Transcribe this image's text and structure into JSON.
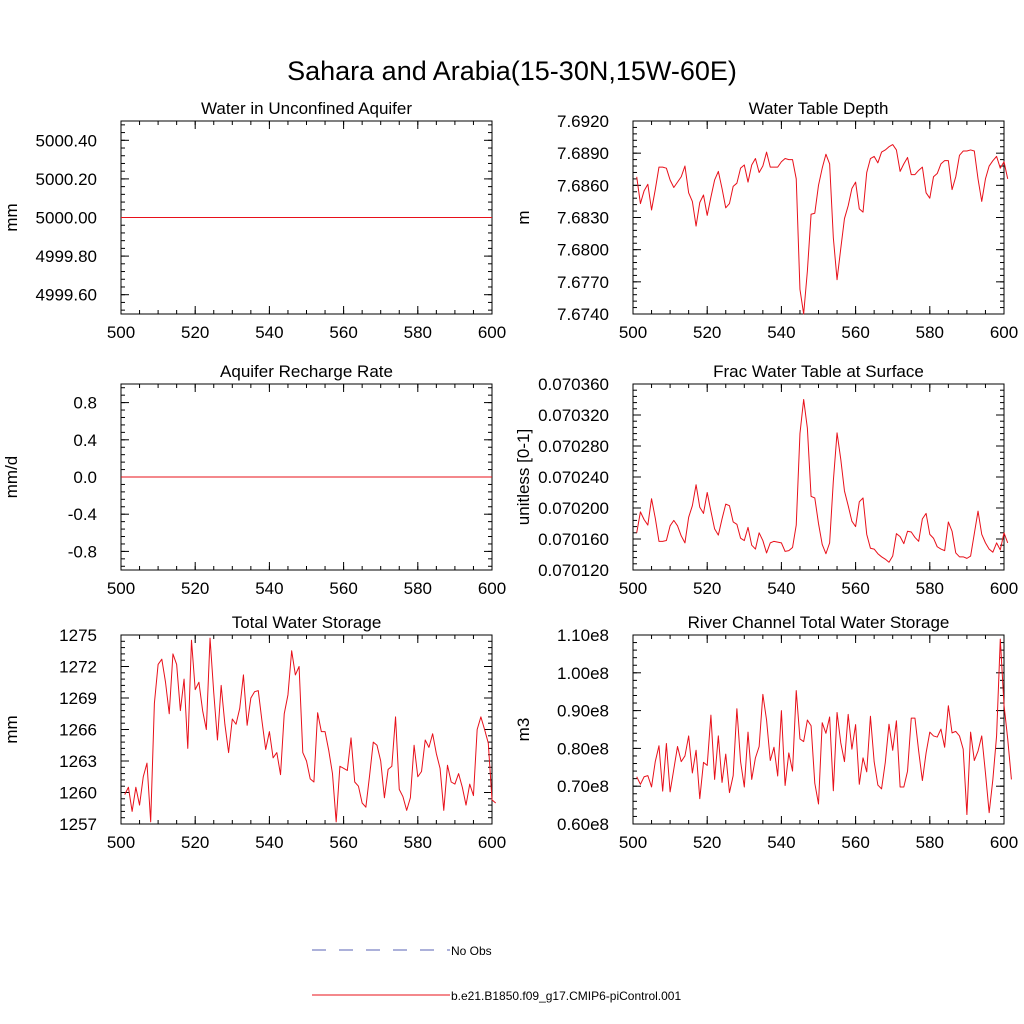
{
  "figure_title": "Sahara and Arabia(15-30N,15W-60E)",
  "colors": {
    "model": "#e8101a",
    "obs": "#5a63b4",
    "axis": "#000000"
  },
  "legend": {
    "obs_label": "No Obs",
    "model_label": "b.e21.B1850.f09_g17.CMIP6-piControl.001"
  },
  "chart_data": [
    {
      "type": "line",
      "title": "Water in Unconfined Aquifer",
      "ylabel": "mm",
      "xlabel": "",
      "xlim": [
        500,
        600
      ],
      "ylim": [
        4999.5,
        5000.5
      ],
      "x_ticks": [
        500,
        520,
        540,
        560,
        580,
        600
      ],
      "x_tick_labels": [
        "500",
        "520",
        "540",
        "560",
        "580",
        "600"
      ],
      "y_ticks": [
        4999.6,
        4999.8,
        5000.0,
        5000.2,
        5000.4
      ],
      "y_tick_labels": [
        "4999.60",
        "4999.80",
        "5000.00",
        "5000.20",
        "5000.40"
      ],
      "series": [
        {
          "name": "b.e21.B1850.f09_g17.CMIP6-piControl.001",
          "x_start": 500,
          "x_step": 1,
          "values": [
            5000,
            5000,
            5000,
            5000,
            5000,
            5000,
            5000,
            5000,
            5000,
            5000,
            5000,
            5000,
            5000,
            5000,
            5000,
            5000,
            5000,
            5000,
            5000,
            5000,
            5000,
            5000,
            5000,
            5000,
            5000,
            5000,
            5000,
            5000,
            5000,
            5000,
            5000,
            5000,
            5000,
            5000,
            5000,
            5000,
            5000,
            5000,
            5000,
            5000,
            5000,
            5000,
            5000,
            5000,
            5000,
            5000,
            5000,
            5000,
            5000,
            5000,
            5000,
            5000,
            5000,
            5000,
            5000,
            5000,
            5000,
            5000,
            5000,
            5000,
            5000,
            5000,
            5000,
            5000,
            5000,
            5000,
            5000,
            5000,
            5000,
            5000,
            5000,
            5000,
            5000,
            5000,
            5000,
            5000,
            5000,
            5000,
            5000,
            5000,
            5000,
            5000,
            5000,
            5000,
            5000,
            5000,
            5000,
            5000,
            5000,
            5000,
            5000,
            5000,
            5000,
            5000,
            5000,
            5000,
            5000,
            5000,
            5000,
            5000,
            5000
          ]
        }
      ]
    },
    {
      "type": "line",
      "title": "Water Table Depth",
      "ylabel": "m",
      "xlabel": "",
      "xlim": [
        500,
        600
      ],
      "ylim": [
        7.674,
        7.692
      ],
      "x_ticks": [
        500,
        520,
        540,
        560,
        580,
        600
      ],
      "x_tick_labels": [
        "500",
        "520",
        "540",
        "560",
        "580",
        "600"
      ],
      "y_ticks": [
        7.674,
        7.677,
        7.68,
        7.683,
        7.686,
        7.689,
        7.692
      ],
      "y_tick_labels": [
        "7.6740",
        "7.6770",
        "7.6800",
        "7.6830",
        "7.6860",
        "7.6890",
        "7.6920"
      ],
      "series": [
        {
          "name": "b.e21.B1850.f09_g17.CMIP6-piControl.001",
          "x_start": 501,
          "x_step": 1,
          "values": [
            7.6868,
            7.6843,
            7.6855,
            7.6861,
            7.6837,
            7.6856,
            7.6877,
            7.6877,
            7.6876,
            7.6865,
            7.6858,
            7.6863,
            7.6868,
            7.6878,
            7.6853,
            7.6845,
            7.6822,
            7.6844,
            7.6851,
            7.6832,
            7.6849,
            7.6865,
            7.6873,
            7.6857,
            7.6839,
            7.6843,
            7.6859,
            7.6862,
            7.6876,
            7.6879,
            7.6863,
            7.6879,
            7.6885,
            7.6872,
            7.6878,
            7.6891,
            7.6877,
            7.6877,
            7.6877,
            7.6882,
            7.6885,
            7.6884,
            7.6884,
            7.6866,
            7.6763,
            7.674,
            7.678,
            7.6833,
            7.6834,
            7.686,
            7.6876,
            7.6889,
            7.688,
            7.6811,
            7.6772,
            7.6801,
            7.6829,
            7.6841,
            7.6857,
            7.6863,
            7.6838,
            7.6835,
            7.6872,
            7.6885,
            7.6887,
            7.6881,
            7.6891,
            7.6893,
            7.6896,
            7.6898,
            7.6893,
            7.6873,
            7.688,
            7.6886,
            7.687,
            7.687,
            7.6874,
            7.6877,
            7.6853,
            7.6848,
            7.6868,
            7.6871,
            7.688,
            7.6883,
            7.6883,
            7.6856,
            7.6868,
            7.6888,
            7.6892,
            7.6892,
            7.6893,
            7.6892,
            7.6866,
            7.6845,
            7.6866,
            7.6878,
            7.6883,
            7.6887,
            7.6876,
            7.6882,
            7.6866
          ]
        }
      ]
    },
    {
      "type": "line",
      "title": "Aquifer Recharge Rate",
      "ylabel": "mm/d",
      "xlabel": "",
      "xlim": [
        500,
        600
      ],
      "ylim": [
        -1.0,
        1.0
      ],
      "x_ticks": [
        500,
        520,
        540,
        560,
        580,
        600
      ],
      "x_tick_labels": [
        "500",
        "520",
        "540",
        "560",
        "580",
        "600"
      ],
      "y_ticks": [
        -0.8,
        -0.4,
        0.0,
        0.4,
        0.8
      ],
      "y_tick_labels": [
        "-0.8",
        "-0.4",
        "0.0",
        "0.4",
        "0.8"
      ],
      "series": [
        {
          "name": "b.e21.B1850.f09_g17.CMIP6-piControl.001",
          "x_start": 500,
          "x_step": 1,
          "values": [
            0,
            0,
            0,
            0,
            0,
            0,
            0,
            0,
            0,
            0,
            0,
            0,
            0,
            0,
            0,
            0,
            0,
            0,
            0,
            0,
            0,
            0,
            0,
            0,
            0,
            0,
            0,
            0,
            0,
            0,
            0,
            0,
            0,
            0,
            0,
            0,
            0,
            0,
            0,
            0,
            0,
            0,
            0,
            0,
            0,
            0,
            0,
            0,
            0,
            0,
            0,
            0,
            0,
            0,
            0,
            0,
            0,
            0,
            0,
            0,
            0,
            0,
            0,
            0,
            0,
            0,
            0,
            0,
            0,
            0,
            0,
            0,
            0,
            0,
            0,
            0,
            0,
            0,
            0,
            0,
            0,
            0,
            0,
            0,
            0,
            0,
            0,
            0,
            0,
            0,
            0,
            0,
            0,
            0,
            0,
            0,
            0,
            0,
            0,
            0,
            0
          ]
        }
      ]
    },
    {
      "type": "line",
      "title": "Frac Water Table at Surface",
      "ylabel": "unitless [0-1]",
      "xlabel": "",
      "xlim": [
        500,
        600
      ],
      "ylim": [
        0.07012,
        0.07036
      ],
      "x_ticks": [
        500,
        520,
        540,
        560,
        580,
        600
      ],
      "x_tick_labels": [
        "500",
        "520",
        "540",
        "560",
        "580",
        "600"
      ],
      "y_ticks": [
        0.07012,
        0.07016,
        0.0702,
        0.07024,
        0.07028,
        0.07032,
        0.07036
      ],
      "y_tick_labels": [
        "0.070120",
        "0.070160",
        "0.070200",
        "0.070240",
        "0.070280",
        "0.070320",
        "0.070360"
      ],
      "series": [
        {
          "name": "b.e21.B1850.f09_g17.CMIP6-piControl.001",
          "x_start": 501,
          "x_step": 1,
          "values": [
            0.070168,
            0.070195,
            0.070185,
            0.070178,
            0.070212,
            0.070187,
            0.070157,
            0.070157,
            0.070158,
            0.070177,
            0.070184,
            0.070177,
            0.070164,
            0.070155,
            0.070188,
            0.070203,
            0.07023,
            0.070201,
            0.070193,
            0.07022,
            0.070196,
            0.070173,
            0.070165,
            0.070186,
            0.070205,
            0.070203,
            0.070182,
            0.070179,
            0.070161,
            0.070158,
            0.070175,
            0.070152,
            0.070147,
            0.070168,
            0.070158,
            0.070142,
            0.070155,
            0.070157,
            0.070156,
            0.070155,
            0.070144,
            0.070145,
            0.070149,
            0.070178,
            0.070296,
            0.07034,
            0.070303,
            0.070215,
            0.070213,
            0.07018,
            0.070153,
            0.070141,
            0.070155,
            0.070235,
            0.070297,
            0.070263,
            0.070222,
            0.070203,
            0.070183,
            0.070176,
            0.070208,
            0.070213,
            0.070166,
            0.070148,
            0.070147,
            0.070141,
            0.070137,
            0.070134,
            0.07013,
            0.070138,
            0.070167,
            0.070163,
            0.070154,
            0.07017,
            0.070169,
            0.070162,
            0.070157,
            0.070186,
            0.070193,
            0.070166,
            0.070161,
            0.07015,
            0.070147,
            0.070145,
            0.070182,
            0.07017,
            0.070142,
            0.070137,
            0.070137,
            0.070135,
            0.070138,
            0.070167,
            0.070196,
            0.070166,
            0.070155,
            0.070147,
            0.070143,
            0.070155,
            0.070146,
            0.070168,
            0.070155
          ]
        }
      ]
    },
    {
      "type": "line",
      "title": "Total Water Storage",
      "ylabel": "mm",
      "xlabel": "",
      "xlim": [
        500,
        600
      ],
      "ylim": [
        1257,
        1275
      ],
      "x_ticks": [
        500,
        520,
        540,
        560,
        580,
        600
      ],
      "x_tick_labels": [
        "500",
        "520",
        "540",
        "560",
        "580",
        "600"
      ],
      "y_ticks": [
        1257,
        1260,
        1263,
        1266,
        1269,
        1272,
        1275
      ],
      "y_tick_labels": [
        "1257",
        "1260",
        "1263",
        "1266",
        "1269",
        "1272",
        "1275"
      ],
      "series": [
        {
          "name": "b.e21.B1850.f09_g17.CMIP6-piControl.001",
          "x_start": 501,
          "x_step": 1,
          "values": [
            1259.8,
            1260.5,
            1258.2,
            1260.5,
            1258.8,
            1261.5,
            1262.8,
            1257.2,
            1268.5,
            1272.2,
            1272.7,
            1270.5,
            1267.5,
            1273.2,
            1272.2,
            1267.8,
            1270.8,
            1264.2,
            1274.5,
            1269.8,
            1270.5,
            1267.8,
            1266.0,
            1274.7,
            1269.5,
            1265.0,
            1270.2,
            1266.5,
            1263.8,
            1267.0,
            1266.5,
            1268.0,
            1271.2,
            1266.4,
            1269.0,
            1269.6,
            1269.7,
            1266.8,
            1264.1,
            1265.8,
            1263.3,
            1263.8,
            1261.7,
            1267.5,
            1269.3,
            1273.5,
            1271.2,
            1272.0,
            1263.8,
            1263.0,
            1261.3,
            1261.0,
            1267.6,
            1265.8,
            1265.8,
            1264.0,
            1261.8,
            1257.2,
            1262.5,
            1262.3,
            1262.1,
            1265.2,
            1261.0,
            1260.6,
            1259.0,
            1258.6,
            1261.6,
            1264.8,
            1264.5,
            1263.0,
            1259.5,
            1262.2,
            1262.5,
            1267.2,
            1260.3,
            1259.6,
            1258.3,
            1259.5,
            1264.5,
            1261.5,
            1262.0,
            1265.0,
            1264.3,
            1265.6,
            1263.7,
            1262.3,
            1258.3,
            1262.6,
            1261.0,
            1260.8,
            1261.8,
            1260.5,
            1258.8,
            1260.8,
            1259.7,
            1266.0,
            1267.2,
            1266.0,
            1264.7,
            1259.3,
            1259.0
          ]
        }
      ]
    },
    {
      "type": "line",
      "title": "River Channel Total Water Storage",
      "ylabel": "m3",
      "xlabel": "",
      "xlim": [
        500,
        600
      ],
      "ylim": [
        60000000,
        110000000
      ],
      "x_ticks": [
        500,
        520,
        540,
        560,
        580,
        600
      ],
      "x_tick_labels": [
        "500",
        "520",
        "540",
        "560",
        "580",
        "600"
      ],
      "y_ticks": [
        60000000,
        70000000,
        80000000,
        90000000,
        100000000,
        110000000
      ],
      "y_tick_labels": [
        "0.60e8",
        "0.70e8",
        "0.80e8",
        "0.90e8",
        "1.00e8",
        "1.10e8"
      ],
      "series": [
        {
          "name": "b.e21.B1850.f09_g17.CMIP6-piControl.001",
          "x_start": 501,
          "x_step": 1,
          "values": [
            72500000,
            70500000,
            72500000,
            72800000,
            69800000,
            76500000,
            80700000,
            68700000,
            81300000,
            68500000,
            74500000,
            80500000,
            76500000,
            78000000,
            83300000,
            73500000,
            79500000,
            66700000,
            76300000,
            75500000,
            88800000,
            71800000,
            83300000,
            71000000,
            78500000,
            68300000,
            72800000,
            90500000,
            76500000,
            69800000,
            84300000,
            71800000,
            77500000,
            80500000,
            94300000,
            87500000,
            76800000,
            80300000,
            72700000,
            90000000,
            70200000,
            78800000,
            74000000,
            95300000,
            82500000,
            81800000,
            87500000,
            86000000,
            70800000,
            65300000,
            86800000,
            84000000,
            88300000,
            68800000,
            89500000,
            81500000,
            76500000,
            89000000,
            79800000,
            86300000,
            70500000,
            77500000,
            73800000,
            88500000,
            76500000,
            70300000,
            69300000,
            76300000,
            86400000,
            79500000,
            87300000,
            69800000,
            69800000,
            74000000,
            88000000,
            88000000,
            79300000,
            71500000,
            78800000,
            84300000,
            83300000,
            83000000,
            85100000,
            80300000,
            91300000,
            84100000,
            84500000,
            83300000,
            79800000,
            62500000,
            84300000,
            76800000,
            79300000,
            83300000,
            73500000,
            63000000,
            71800000,
            83300000,
            108900000,
            91500000,
            82500000,
            71800000
          ]
        }
      ]
    }
  ]
}
